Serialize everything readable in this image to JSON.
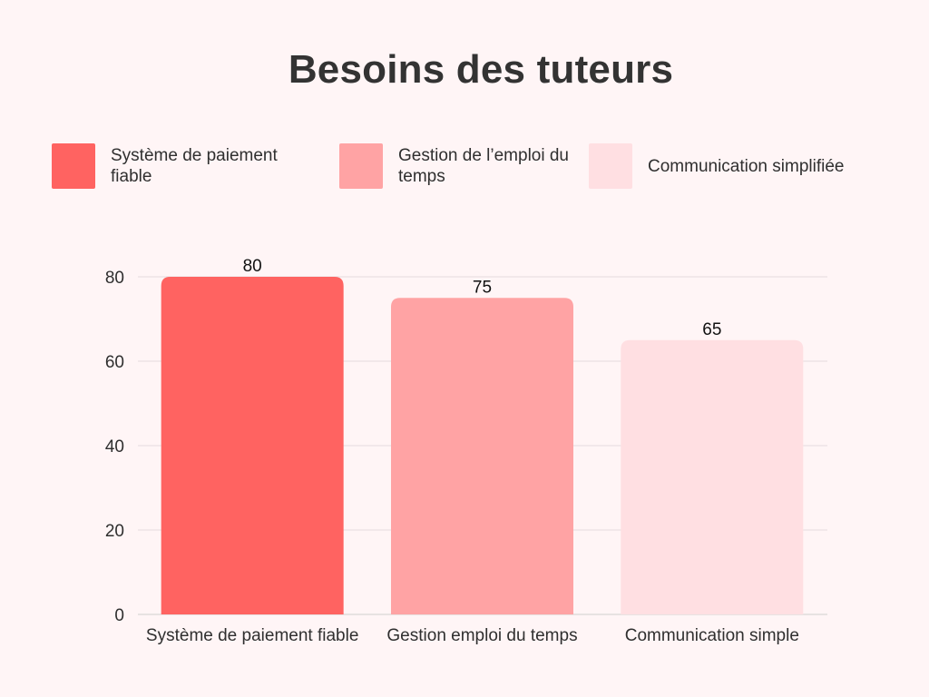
{
  "chart_data": {
    "type": "bar",
    "title": "Besoins des tuteurs",
    "categories": [
      "Système de paiement fiable",
      "Gestion emploi du temps",
      "Communication simple"
    ],
    "values": [
      80,
      75,
      65
    ],
    "colors": [
      "#ff6361",
      "#ffa3a4",
      "#ffdfe2"
    ],
    "legend": {
      "placement": "top",
      "entries": [
        "Système de paiement fiable",
        "Gestion de l’emploi du temps",
        "Communication simplifiée"
      ]
    },
    "xlabel": "",
    "ylabel": "",
    "ylim": [
      0,
      80
    ],
    "yticks": [
      0,
      20,
      40,
      60,
      80
    ],
    "grid": true,
    "data_labels": true
  }
}
